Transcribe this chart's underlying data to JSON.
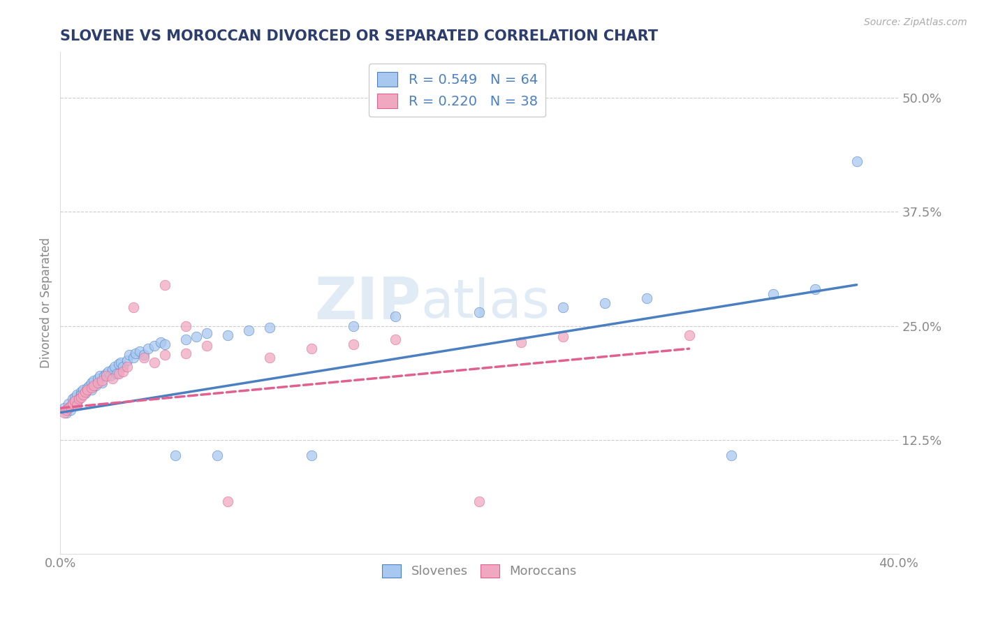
{
  "title": "SLOVENE VS MOROCCAN DIVORCED OR SEPARATED CORRELATION CHART",
  "source": "Source: ZipAtlas.com",
  "ylabel": "Divorced or Separated",
  "xlim": [
    0.0,
    0.4
  ],
  "ylim": [
    0.0,
    0.55
  ],
  "xticks": [
    0.0,
    0.1,
    0.2,
    0.3,
    0.4
  ],
  "xticklabels": [
    "0.0%",
    "",
    "",
    "",
    "40.0%"
  ],
  "ytick_positions": [
    0.125,
    0.25,
    0.375,
    0.5
  ],
  "ytick_labels": [
    "12.5%",
    "25.0%",
    "37.5%",
    "50.0%"
  ],
  "legend_top_labels": [
    "R = 0.549   N = 64",
    "R = 0.220   N = 38"
  ],
  "legend_bottom_labels": [
    "Slovenes",
    "Moroccans"
  ],
  "slovene_scatter_x": [
    0.002,
    0.003,
    0.004,
    0.005,
    0.005,
    0.006,
    0.006,
    0.007,
    0.007,
    0.008,
    0.008,
    0.009,
    0.01,
    0.01,
    0.011,
    0.012,
    0.013,
    0.014,
    0.015,
    0.015,
    0.016,
    0.017,
    0.018,
    0.019,
    0.02,
    0.021,
    0.022,
    0.023,
    0.024,
    0.025,
    0.026,
    0.027,
    0.028,
    0.029,
    0.03,
    0.032,
    0.033,
    0.035,
    0.036,
    0.038,
    0.04,
    0.042,
    0.045,
    0.048,
    0.05,
    0.055,
    0.06,
    0.065,
    0.07,
    0.075,
    0.08,
    0.09,
    0.1,
    0.12,
    0.14,
    0.16,
    0.2,
    0.24,
    0.26,
    0.28,
    0.32,
    0.34,
    0.36,
    0.38
  ],
  "slovene_scatter_y": [
    0.16,
    0.155,
    0.165,
    0.158,
    0.162,
    0.163,
    0.17,
    0.168,
    0.172,
    0.165,
    0.175,
    0.17,
    0.178,
    0.175,
    0.18,
    0.176,
    0.182,
    0.185,
    0.18,
    0.188,
    0.19,
    0.185,
    0.192,
    0.195,
    0.188,
    0.195,
    0.198,
    0.2,
    0.195,
    0.202,
    0.205,
    0.198,
    0.208,
    0.21,
    0.205,
    0.212,
    0.218,
    0.215,
    0.22,
    0.222,
    0.218,
    0.225,
    0.228,
    0.232,
    0.23,
    0.108,
    0.235,
    0.238,
    0.242,
    0.108,
    0.24,
    0.245,
    0.248,
    0.108,
    0.25,
    0.26,
    0.265,
    0.27,
    0.275,
    0.28,
    0.108,
    0.285,
    0.29,
    0.43
  ],
  "moroccan_scatter_x": [
    0.002,
    0.003,
    0.004,
    0.005,
    0.006,
    0.007,
    0.008,
    0.009,
    0.01,
    0.011,
    0.012,
    0.013,
    0.015,
    0.016,
    0.018,
    0.02,
    0.022,
    0.025,
    0.028,
    0.03,
    0.032,
    0.035,
    0.04,
    0.045,
    0.05,
    0.06,
    0.07,
    0.08,
    0.1,
    0.12,
    0.14,
    0.16,
    0.2,
    0.22,
    0.24,
    0.05,
    0.06,
    0.3
  ],
  "moroccan_scatter_y": [
    0.155,
    0.158,
    0.16,
    0.162,
    0.165,
    0.168,
    0.163,
    0.17,
    0.172,
    0.175,
    0.178,
    0.18,
    0.182,
    0.185,
    0.188,
    0.19,
    0.195,
    0.192,
    0.198,
    0.2,
    0.205,
    0.27,
    0.215,
    0.21,
    0.218,
    0.22,
    0.228,
    0.058,
    0.215,
    0.225,
    0.23,
    0.235,
    0.058,
    0.232,
    0.238,
    0.295,
    0.25,
    0.24
  ],
  "slovene_line_x": [
    0.0,
    0.38
  ],
  "slovene_line_y": [
    0.155,
    0.295
  ],
  "moroccan_line_x": [
    0.0,
    0.3
  ],
  "moroccan_line_y": [
    0.16,
    0.225
  ],
  "slovene_line_color": "#4a7fc1",
  "moroccan_line_color": "#e06090",
  "slovene_scatter_color": "#a8c8f0",
  "moroccan_scatter_color": "#f0a8c0",
  "slovene_R": 0.549,
  "slovene_N": 64,
  "moroccan_R": 0.22,
  "moroccan_N": 38,
  "background_color": "#ffffff",
  "grid_color": "#cccccc",
  "title_color": "#2c3e6e",
  "legend_text_color": "#4a7fc1",
  "tick_color": "#888888"
}
